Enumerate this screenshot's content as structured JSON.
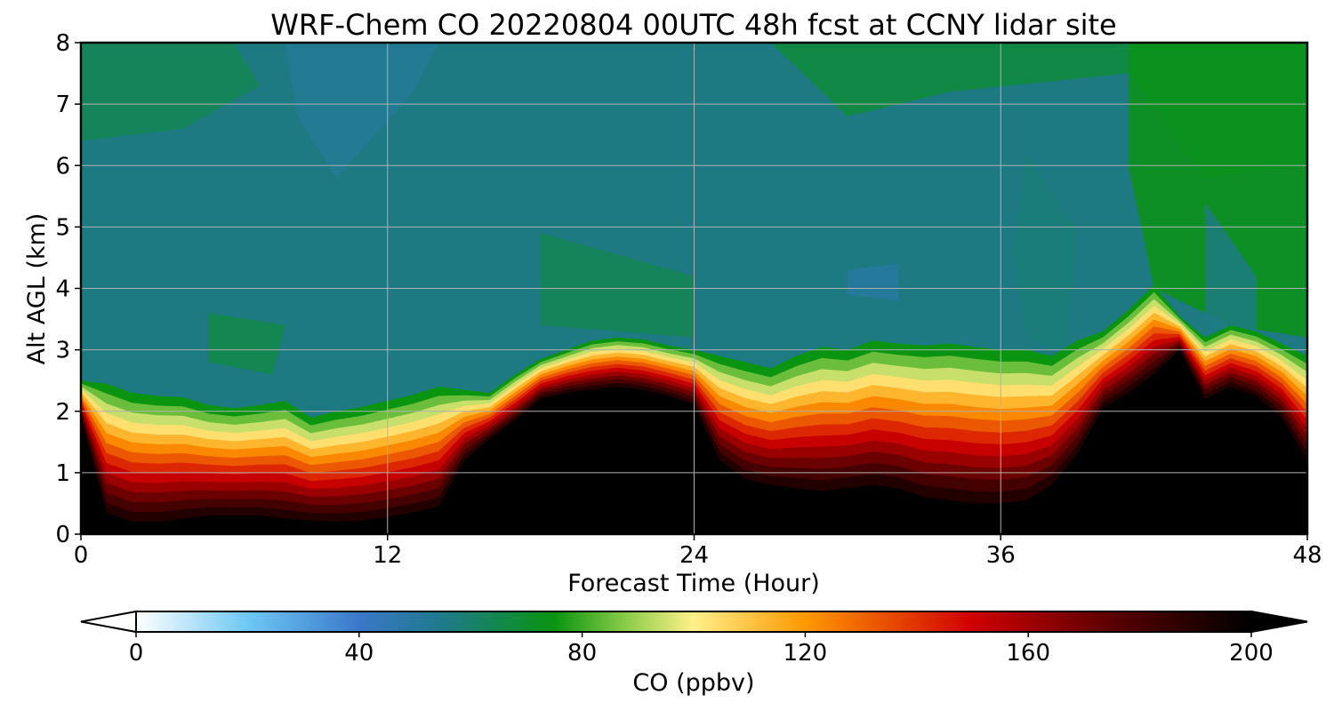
{
  "chart_data": {
    "type": "heatmap",
    "title": "WRF-Chem CO  20220804 00UTC 48h fcst at CCNY lidar site",
    "xlabel": "Forecast Time (Hour)",
    "ylabel": "Alt AGL (km)",
    "xlim": [
      0,
      48
    ],
    "ylim": [
      0,
      8
    ],
    "x_ticks": [
      0,
      12,
      24,
      36,
      48
    ],
    "y_ticks": [
      0,
      1,
      2,
      3,
      4,
      5,
      6,
      7,
      8
    ],
    "grid": true,
    "colorbar": {
      "label": "CO  (ppbv)",
      "range": [
        0,
        200
      ],
      "ticks": [
        0,
        40,
        80,
        120,
        160,
        200
      ],
      "extend": "both",
      "colors": [
        [
          0,
          "#ffffff"
        ],
        [
          20,
          "#6ec8f5"
        ],
        [
          40,
          "#3a78c8"
        ],
        [
          55,
          "#1e7a8a"
        ],
        [
          75,
          "#0a9410"
        ],
        [
          88,
          "#8ccd4a"
        ],
        [
          100,
          "#fff08a"
        ],
        [
          120,
          "#ff9800"
        ],
        [
          150,
          "#d00000"
        ],
        [
          175,
          "#5a0000"
        ],
        [
          200,
          "#000000"
        ]
      ]
    },
    "boundary_layer_top_km": {
      "hours": [
        0,
        1,
        2,
        3,
        4,
        5,
        6,
        7,
        8,
        9,
        10,
        11,
        12,
        13,
        14,
        15,
        16,
        17,
        18,
        19,
        20,
        21,
        22,
        23,
        24,
        25,
        26,
        27,
        28,
        29,
        30,
        31,
        32,
        33,
        34,
        35,
        36,
        37,
        38,
        39,
        40,
        41,
        42,
        43,
        44,
        45,
        46,
        47,
        48
      ],
      "values": [
        2.05,
        2.0,
        1.85,
        1.8,
        1.78,
        1.65,
        1.6,
        1.65,
        1.72,
        1.45,
        1.55,
        1.62,
        1.72,
        1.82,
        1.95,
        1.9,
        1.85,
        2.15,
        2.4,
        2.55,
        2.7,
        2.75,
        2.72,
        2.62,
        2.55,
        2.45,
        2.35,
        2.25,
        2.45,
        2.6,
        2.55,
        2.7,
        2.65,
        2.62,
        2.65,
        2.6,
        2.55,
        2.55,
        2.45,
        2.7,
        2.85,
        3.2,
        3.6,
        3.1,
        2.75,
        2.95,
        2.85,
        2.65,
        2.45
      ]
    },
    "max_concentration_top_km": {
      "hours": [
        0,
        1,
        2,
        3,
        4,
        5,
        6,
        7,
        8,
        9,
        10,
        11,
        12,
        13,
        14,
        15,
        16,
        17,
        18,
        19,
        20,
        21,
        22,
        23,
        24,
        25,
        26,
        27,
        28,
        29,
        30,
        31,
        32,
        33,
        34,
        35,
        36,
        37,
        38,
        39,
        40,
        41,
        42,
        43,
        44,
        45,
        46,
        47,
        48
      ],
      "values": [
        1.9,
        0.35,
        0.2,
        0.2,
        0.25,
        0.3,
        0.3,
        0.3,
        0.25,
        0.22,
        0.2,
        0.22,
        0.28,
        0.35,
        0.45,
        1.2,
        1.55,
        1.85,
        2.2,
        2.3,
        2.35,
        2.4,
        2.35,
        2.25,
        2.1,
        1.2,
        0.9,
        0.8,
        0.75,
        0.7,
        0.75,
        0.8,
        0.75,
        0.6,
        0.55,
        0.5,
        0.5,
        0.55,
        0.8,
        1.3,
        2.05,
        2.3,
        2.6,
        3.0,
        2.2,
        2.4,
        2.25,
        1.9,
        1.2
      ]
    },
    "free_troposphere_background_ppbv": 62
  }
}
